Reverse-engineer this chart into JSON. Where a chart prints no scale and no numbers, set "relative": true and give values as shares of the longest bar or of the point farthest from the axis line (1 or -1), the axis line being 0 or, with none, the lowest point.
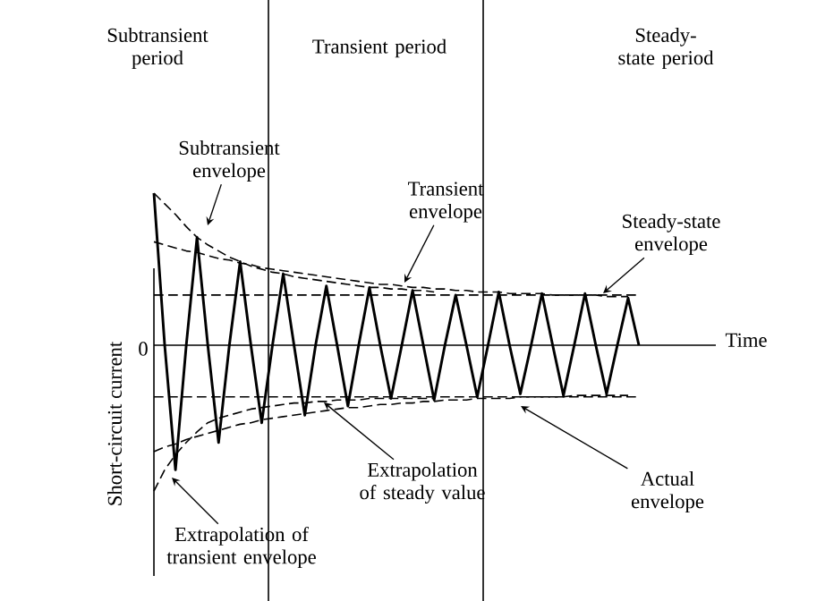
{
  "chart_data": {
    "type": "line",
    "relative": true,
    "xlabel": "Time",
    "ylabel": "Short-circuit current",
    "categories": [
      null,
      null,
      null,
      null,
      null,
      null,
      null,
      null,
      null,
      null,
      null,
      null,
      null,
      null,
      null,
      null,
      null,
      null,
      null,
      null,
      null,
      null,
      null,
      null,
      null,
      null,
      null,
      null,
      null,
      null,
      null,
      null,
      null,
      null,
      null,
      null,
      null,
      null,
      null,
      null,
      null,
      null,
      null,
      null,
      null,
      null
    ],
    "series": [
      {
        "color": "#000000",
        "line_style": "solid",
        "values": [
          1.0,
          0,
          -0.82,
          0,
          0.71,
          0,
          -0.64,
          0,
          0.55,
          0,
          -0.51,
          0,
          0.47,
          0,
          -0.46,
          0,
          0.39,
          0,
          -0.4,
          0,
          0.38,
          0,
          -0.35,
          0,
          0.36,
          0,
          -0.36,
          0,
          0.33,
          0,
          -0.34,
          0,
          0.35,
          0,
          -0.32,
          0,
          0.34,
          0,
          -0.33,
          0,
          0.34,
          0,
          -0.32,
          0,
          0.31,
          0
        ]
      },
      {
        "color": "#000000",
        "line_style": "dashed",
        "values": [
          1.0,
          0.93,
          0.86,
          0.78,
          0.71,
          0.66,
          0.62,
          0.58,
          0.55,
          0.52,
          0.5,
          0.48,
          0.47,
          0.45,
          0.44,
          0.43,
          0.42,
          0.41,
          0.4,
          0.39,
          0.38,
          0.38,
          0.37,
          0.37,
          0.36,
          0.36,
          0.35,
          null,
          null,
          null,
          null,
          null,
          null,
          null,
          null,
          null,
          null,
          null,
          null,
          null,
          null,
          null,
          null,
          null,
          null,
          null
        ]
      },
      {
        "color": "#000000",
        "line_style": "dashed",
        "values": [
          0.68,
          0.66,
          0.64,
          0.62,
          0.61,
          0.59,
          0.57,
          0.56,
          0.54,
          0.53,
          0.51,
          0.5,
          0.49,
          0.48,
          0.47,
          0.46,
          0.45,
          0.44,
          0.43,
          0.42,
          0.41,
          0.4,
          0.4,
          0.39,
          0.38,
          0.38,
          0.37,
          0.37,
          0.36,
          0.36,
          0.35,
          0.35,
          0.35,
          0.34,
          0.34,
          0.34,
          0.34,
          0.33,
          0.33,
          0.33,
          0.33,
          0.33,
          0.32,
          0.32,
          0.32,
          null
        ]
      },
      {
        "color": "#000000",
        "line_style": "dashed",
        "values": [
          0.33,
          0.33,
          0.33,
          0.33,
          0.33,
          0.33,
          0.33,
          0.33,
          0.33,
          0.33,
          0.33,
          0.33,
          0.33,
          0.33,
          0.33,
          0.33,
          0.33,
          0.33,
          0.33,
          0.33,
          0.33,
          0.33,
          0.33,
          0.33,
          0.33,
          0.33,
          0.33,
          0.33,
          0.33,
          0.33,
          0.33,
          0.33,
          0.33,
          0.33,
          0.33,
          0.33,
          0.33,
          0.33,
          0.33,
          0.33,
          0.33,
          0.33,
          0.33,
          0.33,
          0.33,
          0.33
        ]
      },
      {
        "color": "#000000",
        "line_style": "dashed",
        "values": [
          -0.96,
          -0.82,
          -0.72,
          -0.64,
          -0.57,
          -0.51,
          -0.48,
          -0.46,
          -0.44,
          -0.42,
          -0.41,
          -0.4,
          -0.39,
          -0.38,
          -0.38,
          -0.37,
          -0.37,
          -0.36,
          -0.36,
          -0.36,
          -0.35,
          -0.35,
          -0.35,
          -0.35,
          -0.35,
          -0.35,
          -0.35,
          null,
          null,
          null,
          null,
          null,
          null,
          null,
          null,
          null,
          null,
          null,
          null,
          null,
          null,
          null,
          null,
          null,
          null,
          null
        ]
      },
      {
        "color": "#000000",
        "line_style": "dashed",
        "values": [
          -0.7,
          -0.67,
          -0.65,
          -0.62,
          -0.6,
          -0.58,
          -0.56,
          -0.54,
          -0.52,
          -0.51,
          -0.49,
          -0.48,
          -0.47,
          -0.46,
          -0.45,
          -0.44,
          -0.43,
          -0.42,
          -0.41,
          -0.41,
          -0.4,
          -0.39,
          -0.39,
          -0.38,
          -0.38,
          -0.37,
          -0.37,
          -0.36,
          -0.36,
          -0.36,
          -0.35,
          -0.35,
          -0.35,
          -0.35,
          -0.34,
          -0.34,
          -0.34,
          -0.34,
          -0.34,
          -0.33,
          -0.33,
          -0.33,
          -0.33,
          -0.33,
          -0.33,
          null
        ]
      },
      {
        "color": "#000000",
        "line_style": "dashed",
        "values": [
          -0.34,
          -0.34,
          -0.34,
          -0.34,
          -0.34,
          -0.34,
          -0.34,
          -0.34,
          -0.34,
          -0.34,
          -0.34,
          -0.34,
          -0.34,
          -0.34,
          -0.34,
          -0.34,
          -0.34,
          -0.34,
          -0.34,
          -0.34,
          -0.34,
          -0.34,
          -0.34,
          -0.34,
          -0.34,
          -0.34,
          -0.34,
          -0.34,
          -0.34,
          -0.34,
          -0.34,
          -0.34,
          -0.34,
          -0.34,
          -0.34,
          -0.34,
          -0.34,
          -0.34,
          -0.34,
          -0.34,
          -0.34,
          -0.34,
          -0.34,
          -0.34,
          -0.34,
          -0.34
        ]
      }
    ],
    "annotations": [
      "Subtransient period",
      "Transient period",
      "Steady-state period",
      "0",
      "Subtransient envelope",
      "Transient envelope",
      "Steady-state envelope",
      "Actual envelope",
      "Extrapolation of steady value",
      "Extrapolation of transient envelope"
    ]
  }
}
